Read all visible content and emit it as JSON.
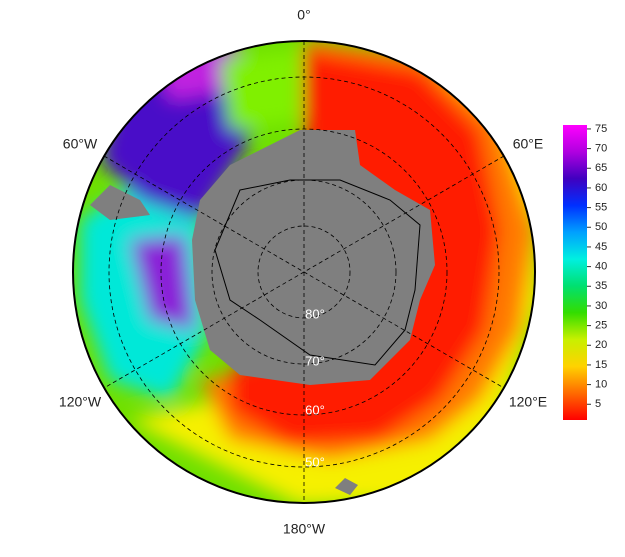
{
  "map": {
    "meridian_labels": [
      "0°",
      "60°E",
      "120°E",
      "180°W",
      "120°W",
      "60°W"
    ],
    "latitude_labels": [
      "80°",
      "70°",
      "60°",
      "50°"
    ],
    "colorbar": {
      "lim": [
        1,
        76
      ],
      "ticks": [
        5,
        10,
        15,
        20,
        25,
        30,
        35,
        40,
        45,
        50,
        55,
        60,
        65,
        70,
        75
      ],
      "colors": [
        "#ff0000",
        "#ff6a00",
        "#ffd200",
        "#c8f000",
        "#33dd00",
        "#00e070",
        "#00f0e0",
        "#00a0ff",
        "#0030ff",
        "#4000c0",
        "#b000e0",
        "#ff00ff"
      ]
    }
  }
}
